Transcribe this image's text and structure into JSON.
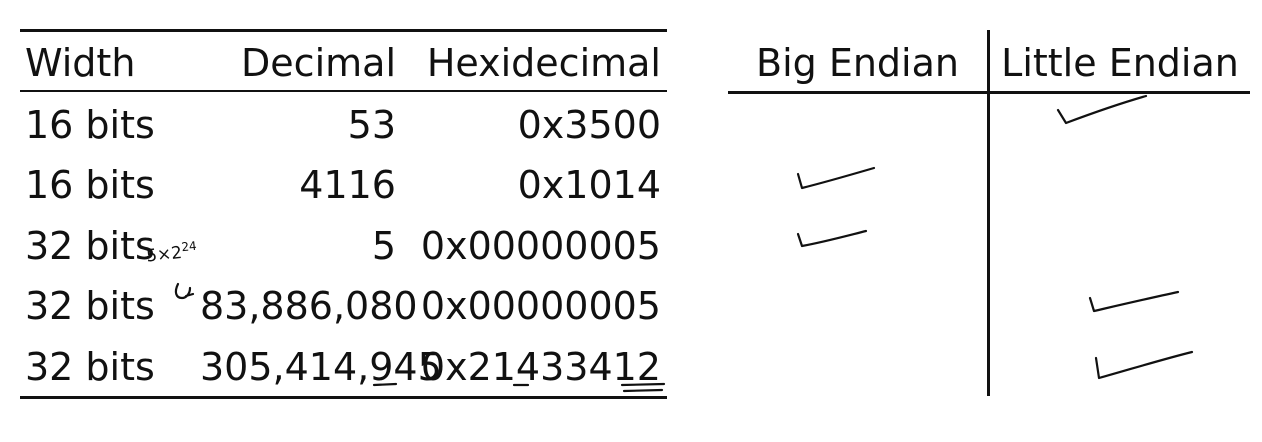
{
  "table": {
    "headers": {
      "width": "Width",
      "decimal": "Decimal",
      "hex": "Hexidecimal"
    },
    "rows": [
      {
        "width": "16 bits",
        "decimal": "53",
        "hex": "0x3500"
      },
      {
        "width": "16 bits",
        "decimal": "4116",
        "hex": "0x1014"
      },
      {
        "width": "32 bits",
        "decimal": "5",
        "hex": "0x00000005"
      },
      {
        "width": "32 bits",
        "decimal": "83,886,080",
        "hex": "0x00000005"
      },
      {
        "width": "32 bits",
        "decimal": "305,414,945",
        "hex": "0x21433412"
      }
    ]
  },
  "endian": {
    "big_header": "Big Endian",
    "little_header": "Little Endian",
    "checks": [
      {
        "row": 1,
        "column": "Little Endian"
      },
      {
        "row": 2,
        "column": "Big Endian"
      },
      {
        "row": 3,
        "column": "Big Endian"
      },
      {
        "row": 4,
        "column": "Little Endian"
      },
      {
        "row": 5,
        "column": "Little Endian"
      }
    ]
  },
  "annotation": {
    "base": "5×2",
    "exponent": "24"
  }
}
